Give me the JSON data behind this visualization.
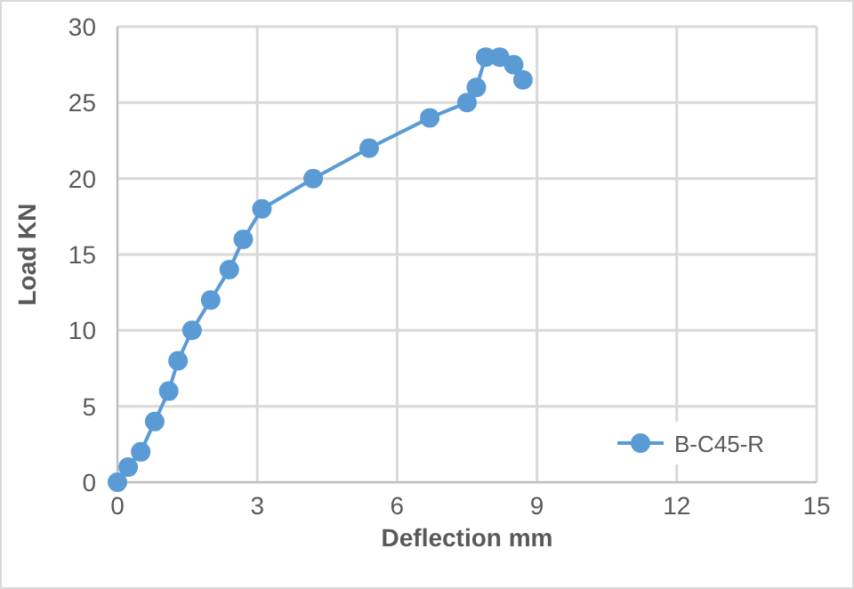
{
  "chart_data": {
    "type": "line",
    "xlabel": "Deflection mm",
    "ylabel": "Load KN",
    "x": [
      0,
      0.23,
      0.5,
      0.8,
      1.1,
      1.3,
      1.6,
      2.0,
      2.4,
      2.7,
      3.1,
      4.2,
      5.4,
      6.7,
      7.5,
      7.7,
      7.9,
      8.2,
      8.5,
      8.7
    ],
    "series": [
      {
        "name": "B-C45-R",
        "color": "#5b9bd5",
        "values": [
          0,
          1,
          2,
          4,
          6,
          8,
          10,
          12,
          14,
          16,
          18,
          20,
          22,
          24,
          25,
          26,
          28,
          28,
          27.5,
          26.5
        ]
      }
    ],
    "xlim": [
      0,
      15
    ],
    "xticks": [
      0,
      3,
      6,
      9,
      12,
      15
    ],
    "ylim": [
      0,
      30
    ],
    "yticks": [
      0,
      5,
      10,
      15,
      20,
      25,
      30
    ],
    "grid": true,
    "legend": "bottom right",
    "marker": "circle",
    "line_style": "solid"
  }
}
